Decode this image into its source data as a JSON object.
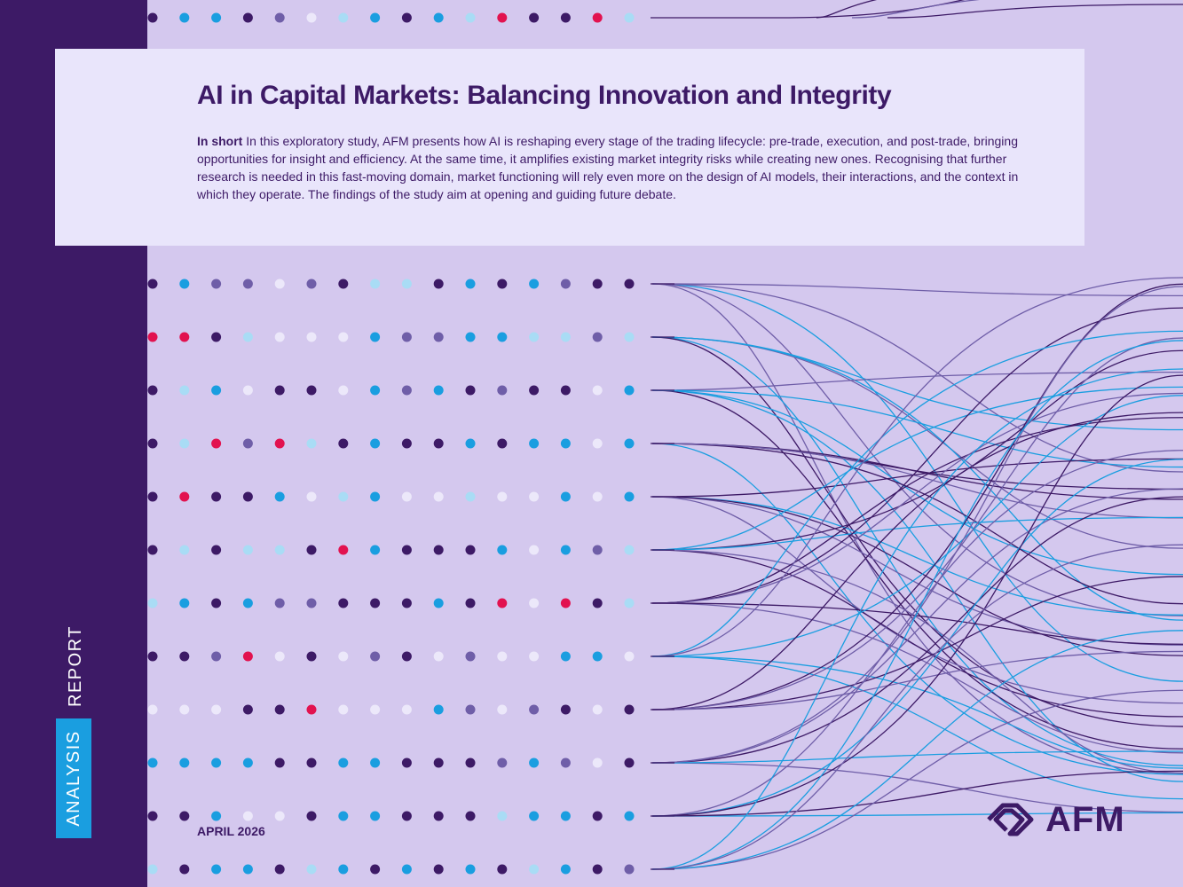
{
  "sidebar": {
    "label": "ANALYSIS",
    "type": "REPORT"
  },
  "header": {
    "title": "AI in Capital Markets: Balancing Innovation and Integrity",
    "summary_lead": "In short",
    "summary": "In this exploratory study, AFM presents how AI is reshaping every stage of the trading lifecycle: pre-trade, execution, and post-trade, bringing opportunities for insight and efficiency. At the same time, it amplifies existing market integrity risks while creating new ones. Recognising that further research is needed in this fast-moving domain, market functioning will rely even more on the design of AI models, their interactions, and the context in which they operate. The findings of the study aim at opening and guiding future debate."
  },
  "date": "APRIL 2026",
  "logo": "AFM"
}
